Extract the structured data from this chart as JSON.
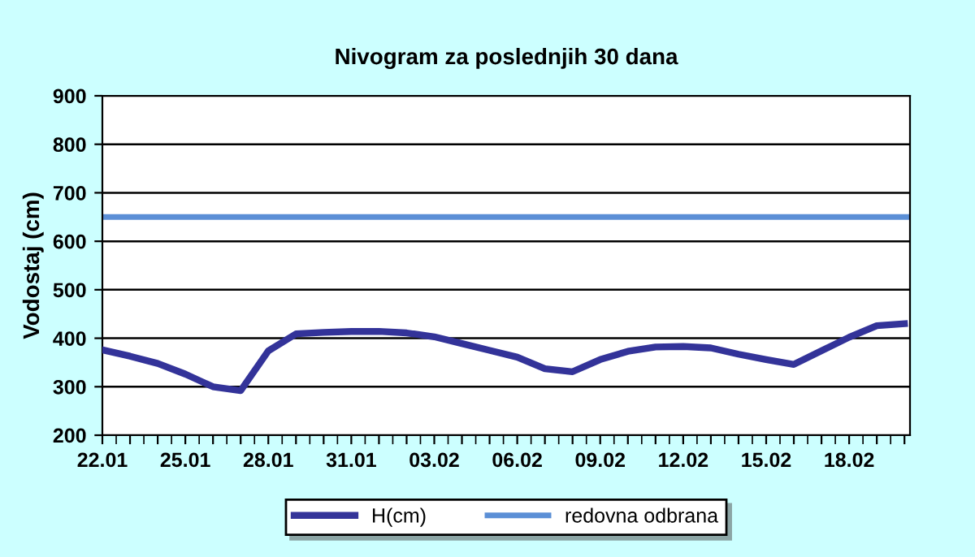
{
  "chart_data": {
    "type": "line",
    "title": "Nivogram za poslednjih 30 dana",
    "ylabel": "Vodostaj (cm)",
    "categories": [
      "22.01",
      null,
      null,
      "25.01",
      null,
      null,
      "28.01",
      null,
      null,
      "31.01",
      null,
      null,
      "03.02",
      null,
      null,
      "06.02",
      null,
      null,
      "09.02",
      null,
      null,
      "12.02",
      null,
      null,
      "15.02",
      null,
      null,
      "18.02",
      null,
      null
    ],
    "series": [
      {
        "name": "H(cm)",
        "color": "#333399",
        "values": [
          376,
          363,
          348,
          326,
          300,
          292,
          374,
          409,
          412,
          414,
          414,
          411,
          403,
          389,
          375,
          361,
          337,
          331,
          356,
          373,
          382,
          383,
          380,
          367,
          356,
          346,
          374,
          402,
          426,
          430
        ]
      }
    ],
    "ref_lines": [
      {
        "axis": "y",
        "value": 650,
        "label": "redovna odbrana",
        "color": "#5b8fd6"
      }
    ],
    "ylim": [
      200,
      900
    ],
    "yticks": [
      200,
      300,
      400,
      500,
      600,
      700,
      800,
      900
    ],
    "grid": "y",
    "legend": "bottom",
    "marker": "none",
    "line_style": "solid"
  }
}
